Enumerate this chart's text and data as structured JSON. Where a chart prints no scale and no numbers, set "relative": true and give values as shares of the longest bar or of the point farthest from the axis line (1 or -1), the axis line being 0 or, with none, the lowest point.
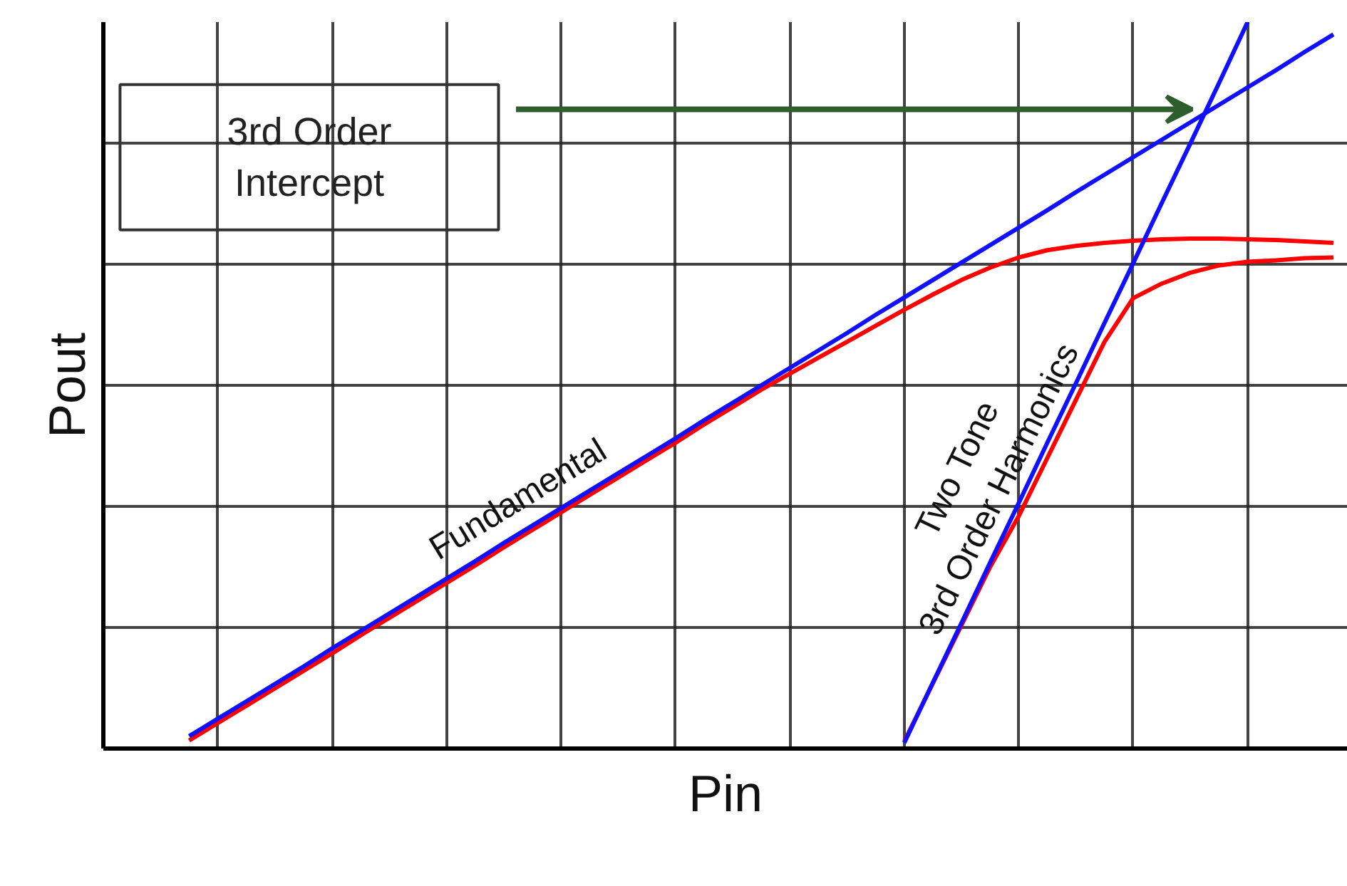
{
  "chart_data": {
    "type": "line",
    "relative": true,
    "xlabel": "Pin",
    "ylabel": "Pout",
    "grid": true,
    "marker": "none",
    "line_style": "solid",
    "categories": [
      null,
      null,
      null,
      null,
      null,
      null,
      null,
      null,
      null,
      null,
      null,
      null,
      null,
      null,
      null,
      null,
      null,
      null,
      null,
      null,
      null,
      null,
      null,
      null,
      null,
      null,
      null,
      null,
      null,
      null,
      null,
      null,
      null,
      null,
      null,
      null,
      null,
      null,
      null,
      null,
      null,
      null,
      null,
      null
    ],
    "series": [
      {
        "color": "#ff0000",
        "values": [
          null,
          null,
          null,
          0.011,
          0.035,
          0.059,
          0.083,
          0.107,
          0.131,
          0.156,
          0.18,
          0.204,
          0.228,
          0.252,
          0.277,
          0.301,
          0.325,
          0.349,
          0.373,
          0.397,
          0.421,
          0.446,
          0.47,
          0.494,
          0.516,
          0.538,
          0.56,
          0.582,
          0.604,
          0.625,
          0.645,
          0.662,
          0.676,
          0.686,
          0.692,
          0.696,
          0.699,
          0.701,
          0.702,
          0.702,
          0.701,
          0.7,
          0.698,
          0.696
        ]
      },
      {
        "color": "#ff0000",
        "values": [
          null,
          null,
          null,
          null,
          null,
          null,
          null,
          null,
          null,
          null,
          null,
          null,
          null,
          null,
          null,
          null,
          null,
          null,
          null,
          null,
          null,
          null,
          null,
          null,
          null,
          null,
          null,
          null,
          0.01,
          0.09,
          0.17,
          0.25,
          0.32,
          0.4,
          0.48,
          0.56,
          0.62,
          0.64,
          0.655,
          0.665,
          0.67,
          0.672,
          0.675,
          0.676
        ]
      },
      {
        "color": "#1010ff",
        "values": [
          null,
          null,
          null,
          0.017,
          0.041,
          0.065,
          0.089,
          0.113,
          0.138,
          0.162,
          0.186,
          0.21,
          0.234,
          0.258,
          0.283,
          0.307,
          0.331,
          0.355,
          0.379,
          0.403,
          0.427,
          0.452,
          0.476,
          0.5,
          0.524,
          0.548,
          0.572,
          0.597,
          0.621,
          0.645,
          0.669,
          0.693,
          0.717,
          0.741,
          0.766,
          0.79,
          0.814,
          0.838,
          0.862,
          0.886,
          0.91,
          0.934,
          0.959,
          0.983
        ]
      },
      {
        "color": "#1010ff",
        "values": [
          null,
          null,
          null,
          null,
          null,
          null,
          null,
          null,
          null,
          null,
          null,
          null,
          null,
          null,
          null,
          null,
          null,
          null,
          null,
          null,
          null,
          null,
          null,
          null,
          null,
          null,
          null,
          null,
          0.008,
          0.091,
          0.173,
          0.256,
          0.338,
          0.421,
          0.503,
          0.586,
          0.668,
          0.751,
          0.833,
          0.916,
          1.0,
          null,
          null,
          null
        ]
      }
    ],
    "annotations": [
      "3rd Order\nIntercept",
      "Fundamental",
      "Two Tone\n3rd Order Harmonics"
    ]
  }
}
